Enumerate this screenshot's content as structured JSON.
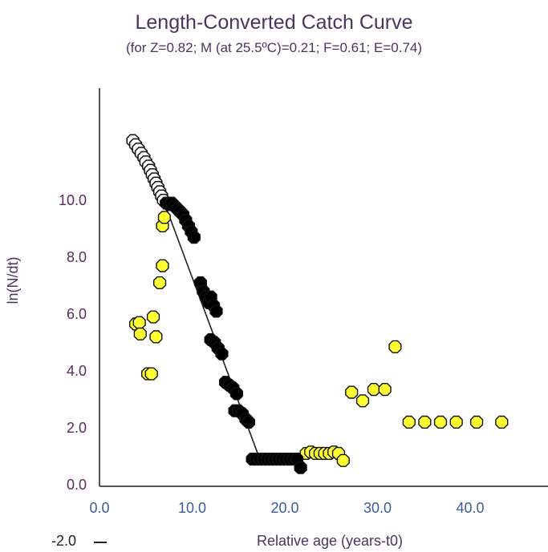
{
  "chart_data": {
    "type": "scatter",
    "title": "Length-Converted Catch Curve",
    "subtitle": "(for Z=0.82; M (at 25.5ºC)=0.21; F=0.61; E=0.74)",
    "xlabel": "Relative age (years-t0)",
    "ylabel": "ln(N/dt)",
    "xlim": [
      0,
      48
    ],
    "ylim": [
      0,
      13
    ],
    "x_ticks": [
      "0.0",
      "10.0",
      "20.0",
      "30.0",
      "40.0"
    ],
    "y_ticks": [
      "0.0",
      "2.0",
      "4.0",
      "6.0",
      "8.0",
      "10.0"
    ],
    "y_extra_label": "-2.0",
    "series": [
      {
        "role": "not-used-for-regression",
        "style": "open",
        "color": "#ffffff",
        "points": [
          [
            3.6,
            12.1
          ],
          [
            3.9,
            11.95
          ],
          [
            4.2,
            11.8
          ],
          [
            4.5,
            11.65
          ],
          [
            4.8,
            11.5
          ],
          [
            5.0,
            11.35
          ],
          [
            5.3,
            11.2
          ],
          [
            5.5,
            11.05
          ],
          [
            5.7,
            10.9
          ],
          [
            5.9,
            10.75
          ],
          [
            6.1,
            10.6
          ],
          [
            6.3,
            10.45
          ],
          [
            6.5,
            10.3
          ],
          [
            6.7,
            10.15
          ],
          [
            6.9,
            10.0
          ]
        ]
      },
      {
        "role": "used-for-regression",
        "style": "filled",
        "color": "#000000",
        "points": [
          [
            7.2,
            9.9
          ],
          [
            7.5,
            9.85
          ],
          [
            7.8,
            9.9
          ],
          [
            8.1,
            9.8
          ],
          [
            8.4,
            9.7
          ],
          [
            8.7,
            9.6
          ],
          [
            9.0,
            9.5
          ],
          [
            9.3,
            9.3
          ],
          [
            9.6,
            9.1
          ],
          [
            9.9,
            8.9
          ],
          [
            10.2,
            8.7
          ],
          [
            10.9,
            7.1
          ],
          [
            11.2,
            6.8
          ],
          [
            11.5,
            6.6
          ],
          [
            11.8,
            6.4
          ],
          [
            12.0,
            6.6
          ],
          [
            12.3,
            6.3
          ],
          [
            12.6,
            6.1
          ],
          [
            12.0,
            5.1
          ],
          [
            12.4,
            5.0
          ],
          [
            12.8,
            4.8
          ],
          [
            13.2,
            4.6
          ],
          [
            13.6,
            3.6
          ],
          [
            14.0,
            3.5
          ],
          [
            14.4,
            3.4
          ],
          [
            14.8,
            3.2
          ],
          [
            14.6,
            2.6
          ],
          [
            15.0,
            2.6
          ],
          [
            15.4,
            2.5
          ],
          [
            15.8,
            2.3
          ],
          [
            16.1,
            2.2
          ],
          [
            16.5,
            0.9
          ],
          [
            16.9,
            0.9
          ],
          [
            17.3,
            0.9
          ],
          [
            17.7,
            0.9
          ],
          [
            18.1,
            0.9
          ],
          [
            18.5,
            0.9
          ],
          [
            18.9,
            0.9
          ],
          [
            19.3,
            0.9
          ],
          [
            19.7,
            0.9
          ],
          [
            20.1,
            0.9
          ],
          [
            20.5,
            0.9
          ],
          [
            20.9,
            0.9
          ],
          [
            21.3,
            0.9
          ],
          [
            21.7,
            0.6
          ]
        ]
      },
      {
        "role": "not-used-for-regression",
        "style": "filled",
        "color": "#ffff33",
        "points": [
          [
            3.9,
            5.65
          ],
          [
            4.3,
            5.7
          ],
          [
            4.4,
            5.3
          ],
          [
            5.2,
            3.9
          ],
          [
            5.6,
            3.9
          ],
          [
            5.8,
            5.9
          ],
          [
            6.1,
            5.2
          ],
          [
            6.5,
            7.1
          ],
          [
            6.8,
            7.7
          ],
          [
            6.8,
            9.1
          ],
          [
            7.0,
            9.4
          ],
          [
            22.3,
            1.1
          ],
          [
            22.8,
            1.15
          ],
          [
            23.3,
            1.1
          ],
          [
            23.8,
            1.1
          ],
          [
            24.3,
            1.1
          ],
          [
            24.8,
            1.1
          ],
          [
            25.3,
            1.15
          ],
          [
            25.8,
            1.1
          ],
          [
            26.3,
            0.85
          ],
          [
            27.2,
            3.25
          ],
          [
            28.4,
            2.95
          ],
          [
            29.6,
            3.35
          ],
          [
            30.8,
            3.35
          ],
          [
            31.9,
            4.85
          ],
          [
            33.4,
            2.2
          ],
          [
            35.1,
            2.2
          ],
          [
            36.8,
            2.2
          ],
          [
            38.5,
            2.2
          ],
          [
            40.7,
            2.2
          ],
          [
            43.4,
            2.2
          ]
        ]
      }
    ],
    "regression_line": {
      "x": [
        6.9,
        17.3
      ],
      "y": [
        10.0,
        0.9
      ]
    }
  }
}
